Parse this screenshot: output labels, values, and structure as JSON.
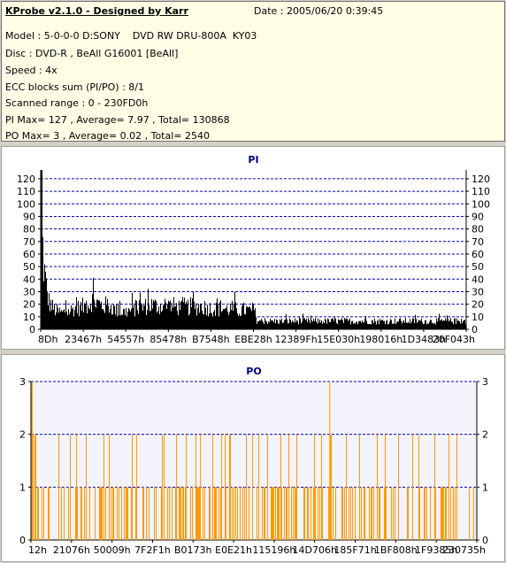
{
  "header": {
    "title": "KProbe v2.1.0 - Designed by Karr",
    "date": "Date : 2005/06/20 0:39:45",
    "info_lines": [
      "Model : 5-0-0-0 D:SONY    DVD RW DRU-800A  KY03",
      "Disc : DVD-R , BeAll G16001 [BeAll]",
      "Speed : 4x",
      "ECC blocks sum (PI/PO) : 8/1",
      "Scanned range : 0 - 230FD0h",
      "PI Max= 127 , Average= 7.97 , Total= 130868",
      "PO Max= 3 , Average= 0.02 , Total= 2540"
    ]
  },
  "colors": {
    "pi_series": "#000000",
    "po_series": "#ff9900",
    "grid": "#0000c0",
    "plot_bg": "#ffffff",
    "po_plot_bg": "#f3f3fc"
  },
  "chart_data": [
    {
      "type": "area",
      "title": "PI",
      "y_ticks": [
        0,
        10,
        20,
        30,
        40,
        50,
        60,
        70,
        80,
        90,
        100,
        110,
        120
      ],
      "ylim": [
        0,
        127
      ],
      "x_tick_labels": [
        "8Dh",
        "23467h",
        "54557h",
        "85478h",
        "B7548h",
        "EBE28h",
        "12389Fh",
        "15E030h",
        "198016h",
        "1D3483h",
        "20F043h"
      ],
      "grid": true,
      "series": [
        {
          "profile": [
            [
              0,
              127
            ],
            [
              0.5,
              115
            ],
            [
              1,
              95
            ],
            [
              1.7,
              75
            ],
            [
              2.5,
              60
            ],
            [
              3.2,
              55
            ],
            [
              4,
              48
            ],
            [
              5.5,
              38
            ],
            [
              7,
              30
            ],
            [
              9,
              24
            ],
            [
              12,
              20
            ],
            [
              15,
              17
            ],
            [
              20,
              15
            ],
            [
              25,
              14
            ],
            [
              28,
              17
            ],
            [
              30,
              15
            ],
            [
              35,
              17
            ],
            [
              40,
              18
            ],
            [
              45,
              19
            ],
            [
              50,
              20
            ],
            [
              55,
              22
            ],
            [
              58,
              26
            ],
            [
              60,
              24
            ],
            [
              65,
              22
            ],
            [
              70,
              20
            ],
            [
              75,
              21
            ],
            [
              80,
              19
            ],
            [
              85,
              16
            ],
            [
              90,
              15
            ],
            [
              95,
              15
            ],
            [
              100,
              16
            ],
            [
              105,
              17
            ],
            [
              110,
              18
            ],
            [
              115,
              19
            ],
            [
              120,
              20
            ],
            [
              125,
              21
            ],
            [
              130,
              20
            ],
            [
              135,
              20
            ],
            [
              140,
              21
            ],
            [
              145,
              20
            ],
            [
              150,
              20
            ],
            [
              155,
              19
            ],
            [
              160,
              20
            ],
            [
              165,
              19
            ],
            [
              170,
              20
            ],
            [
              175,
              19
            ],
            [
              180,
              20
            ],
            [
              185,
              19
            ],
            [
              190,
              18
            ],
            [
              195,
              18
            ],
            [
              200,
              17
            ],
            [
              205,
              18
            ],
            [
              210,
              17
            ],
            [
              215,
              18
            ],
            [
              220,
              17
            ],
            [
              225,
              16
            ],
            [
              230,
              17
            ],
            [
              235,
              16
            ],
            [
              240,
              17
            ],
            [
              242,
              17
            ],
            [
              243,
              8
            ],
            [
              250,
              7
            ],
            [
              260,
              7
            ],
            [
              270,
              7
            ],
            [
              280,
              7
            ],
            [
              290,
              7
            ],
            [
              300,
              7
            ],
            [
              310,
              7
            ],
            [
              320,
              7
            ],
            [
              330,
              7
            ],
            [
              340,
              7
            ],
            [
              350,
              7
            ],
            [
              360,
              7
            ],
            [
              370,
              7
            ],
            [
              380,
              7
            ],
            [
              390,
              7
            ],
            [
              400,
              7
            ],
            [
              410,
              7
            ],
            [
              420,
              7
            ],
            [
              430,
              7
            ],
            [
              440,
              7
            ],
            [
              450,
              7
            ],
            [
              460,
              7
            ],
            [
              470,
              7
            ],
            [
              480,
              7
            ],
            [
              487,
              7
            ]
          ]
        }
      ]
    },
    {
      "type": "bar",
      "title": "PO",
      "y_ticks": [
        0,
        1,
        2,
        3
      ],
      "ylim": [
        0,
        3
      ],
      "x_tick_labels": [
        "12h",
        "21076h",
        "50009h",
        "7F2F1h",
        "B0173h",
        "E0E21h",
        "115196h",
        "14D706h",
        "185F71h",
        "1BF808h",
        "1F9385h",
        "230735h"
      ],
      "grid": true,
      "series": [
        {
          "spikes3": [
            0.6,
            0.9,
            337.3
          ],
          "twos": [
            2,
            4,
            5,
            31,
            44,
            51,
            62,
            82,
            88,
            114,
            119,
            148,
            150,
            164,
            175,
            186,
            191,
            205,
            215,
            219,
            224,
            225,
            243,
            250,
            257,
            267,
            282,
            291,
            300,
            320,
            328,
            338,
            339,
            356,
            371,
            391,
            400,
            415,
            431,
            438,
            456,
            472,
            481
          ]
        }
      ]
    }
  ]
}
